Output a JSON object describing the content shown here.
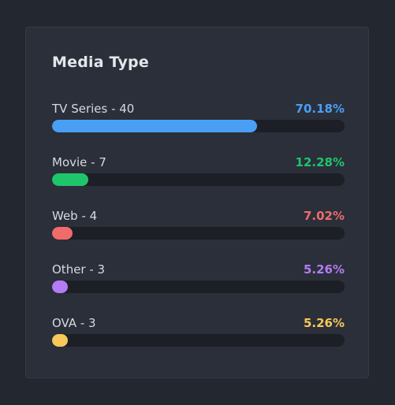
{
  "card": {
    "title": "Media Type"
  },
  "items": [
    {
      "label": "TV Series - 40",
      "percent_text": "70.18%",
      "fraction": 0.7018,
      "color": "#4a9ff5"
    },
    {
      "label": "Movie - 7",
      "percent_text": "12.28%",
      "fraction": 0.1228,
      "color": "#1fc56a"
    },
    {
      "label": "Web - 4",
      "percent_text": "7.02%",
      "fraction": 0.0702,
      "color": "#f16b6b"
    },
    {
      "label": "Other - 3",
      "percent_text": "5.26%",
      "fraction": 0.0526,
      "color": "#b57bf2"
    },
    {
      "label": "OVA - 3",
      "percent_text": "5.26%",
      "fraction": 0.0526,
      "color": "#f7c85a"
    }
  ]
}
